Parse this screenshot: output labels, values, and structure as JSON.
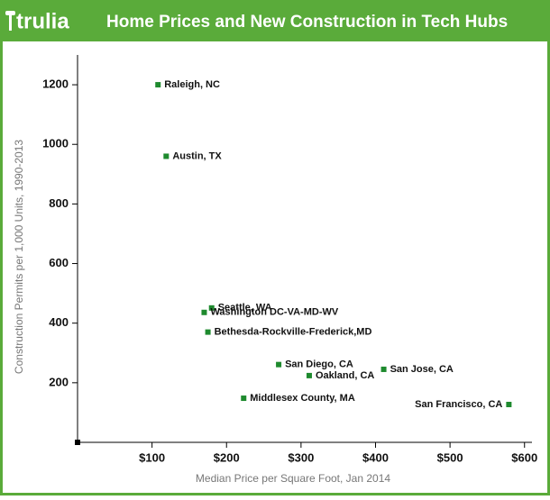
{
  "chart_data": {
    "type": "scatter",
    "brand": "trulia",
    "title": "Home Prices and New Construction in Tech Hubs",
    "x_label": "Median Price per Square Foot, Jan 2014",
    "y_label": "Construction Permits per 1,000 Units, 1990-2013",
    "labels": [
      "Raleigh, NC",
      "Austin, TX",
      "Seattle, WA",
      "Washington DC-VA-MD-WV",
      "Bethesda-Rockville-Frederick,MD",
      "San Diego, CA",
      "Oakland, CA",
      "San Jose, CA",
      "Middlesex County, MA",
      "San Francisco, CA"
    ],
    "x": [
      108,
      119,
      180,
      170,
      175,
      270,
      311,
      411,
      223,
      579
    ],
    "values": [
      1200,
      960,
      451,
      436,
      370,
      261,
      224,
      245,
      148,
      127
    ],
    "color": "#1e8a2e",
    "xlim": [
      0,
      610
    ],
    "ylim": [
      0,
      1300
    ],
    "xticks": [
      {
        "value": 100,
        "label": "$100"
      },
      {
        "value": 200,
        "label": "$200"
      },
      {
        "value": 300,
        "label": "$300"
      },
      {
        "value": 400,
        "label": "$400"
      },
      {
        "value": 500,
        "label": "$500"
      },
      {
        "value": 600,
        "label": "$600"
      }
    ],
    "yticks": [
      200,
      400,
      600,
      800,
      1000,
      1200
    ]
  }
}
